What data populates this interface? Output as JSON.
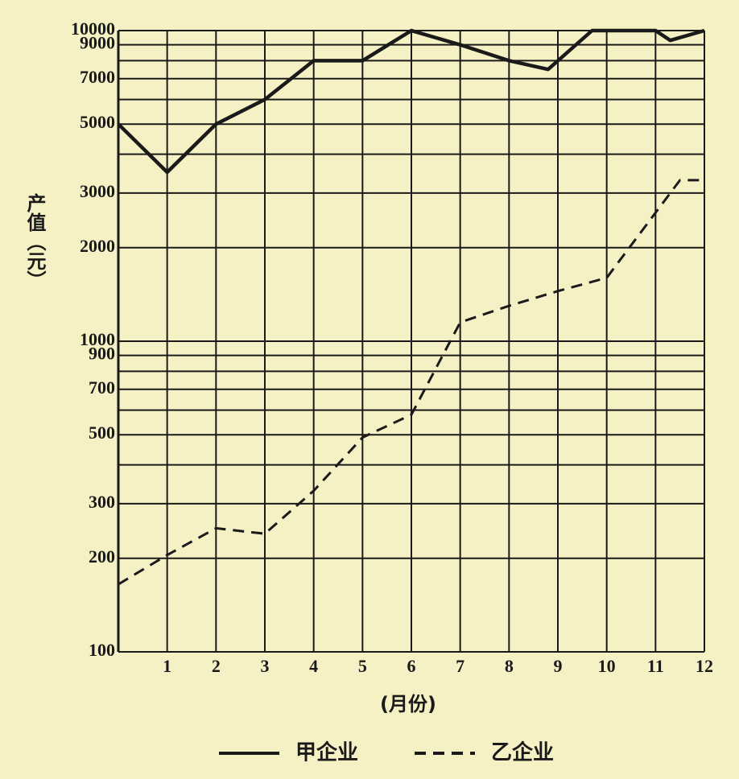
{
  "chart_data": {
    "type": "line",
    "y_label": "产值（元）",
    "x_label": "(月份)",
    "log_scale_y": true,
    "grid": true,
    "xlim": [
      0,
      12
    ],
    "xticks": [
      1,
      2,
      3,
      4,
      5,
      6,
      7,
      8,
      9,
      10,
      11,
      12
    ],
    "ylim": [
      100,
      10000
    ],
    "yticks": [
      100,
      200,
      300,
      500,
      700,
      900,
      1000,
      2000,
      3000,
      5000,
      7000,
      9000,
      10000
    ],
    "y_minor_ticks": [
      400,
      600,
      800,
      4000,
      6000,
      8000
    ],
    "series": [
      {
        "name": "甲企业",
        "color": "#1a1a1a",
        "dash": false,
        "x": [
          0,
          1,
          2,
          3,
          4,
          5,
          6,
          7,
          8,
          8.8,
          9.7,
          11,
          11.3,
          12
        ],
        "values": [
          5000,
          3500,
          5000,
          6000,
          8000,
          8000,
          10000,
          9000,
          8000,
          7500,
          10000,
          10000,
          9300,
          10000
        ]
      },
      {
        "name": "乙企业",
        "color": "#1a1a1a",
        "dash": true,
        "x": [
          0,
          1,
          2,
          3,
          4,
          5,
          6,
          7,
          8,
          9,
          10,
          11.5,
          12
        ],
        "values": [
          165,
          205,
          250,
          240,
          330,
          490,
          580,
          1150,
          1300,
          1450,
          1600,
          3300,
          3300
        ]
      }
    ]
  }
}
